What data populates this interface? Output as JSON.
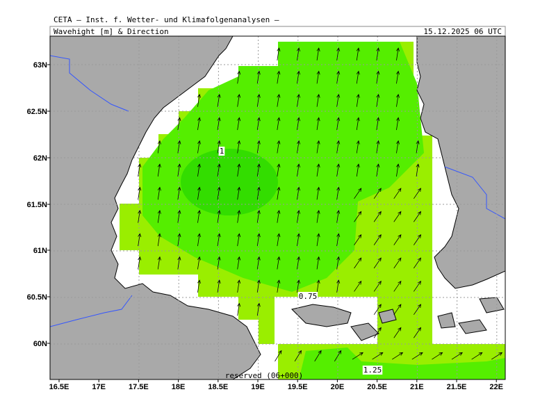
{
  "header": {
    "title": "CETA — Inst. f. Wetter- und Klimafolgenanalysen —",
    "product": "Wavehight [m] & Direction",
    "time": "15.12.2025 06 UTC"
  },
  "map": {
    "lat_labels": [
      "63N",
      "62.5N",
      "62N",
      "61.5N",
      "61N",
      "60.5N",
      "60N"
    ],
    "lon_labels": [
      "16.5E",
      "17E",
      "17.5E",
      "18E",
      "18.5E",
      "19E",
      "19.5E",
      "20E",
      "20.5E",
      "21E",
      "21.5E",
      "22E"
    ],
    "contour_labels": [
      "1",
      "0.75",
      "1.25"
    ],
    "footer": "reserved (06+000)"
  }
}
